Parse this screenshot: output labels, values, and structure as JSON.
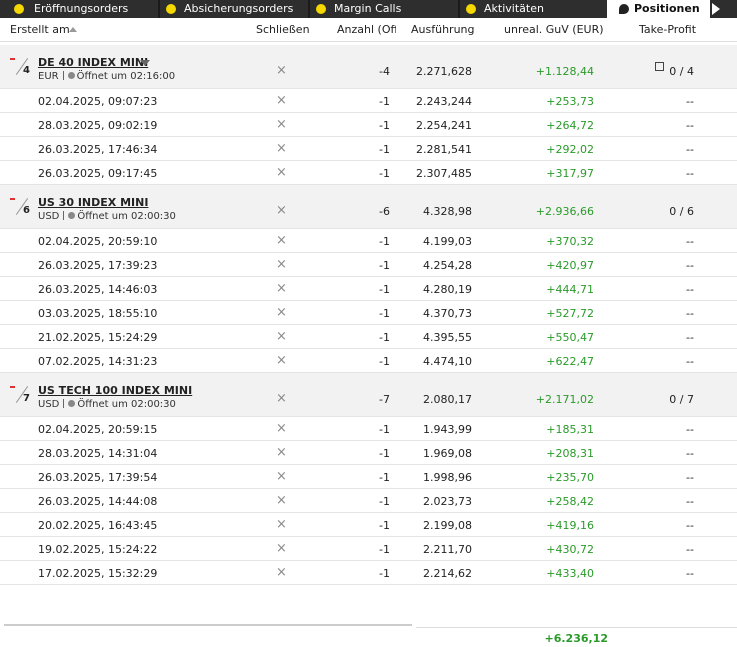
{
  "tabs": [
    "Eröffnungsorders",
    "Absicherungsorders",
    "Margin Calls",
    "Aktivitäten",
    "Positionen"
  ],
  "columns": [
    "Erstellt am",
    "Schließen",
    "Anzahl (Offe",
    "Ausführung",
    "unreal. GuV (EUR)",
    "Take-Profit"
  ],
  "groups": [
    {
      "count": "4",
      "name": "DE 40 INDEX MINI",
      "currency": "EUR",
      "opens": "Öffnet um 02:16:00",
      "quantity": "-4",
      "execution": "2.271,628",
      "pnl": "+1.128,44",
      "take_profit": "0 / 4",
      "rows": [
        {
          "date": "02.04.2025, 09:07:23",
          "quantity": "-1",
          "execution": "2.243,244",
          "pnl": "+253,73",
          "take_profit": "--"
        },
        {
          "date": "28.03.2025, 09:02:19",
          "quantity": "-1",
          "execution": "2.254,241",
          "pnl": "+264,72",
          "take_profit": "--"
        },
        {
          "date": "26.03.2025, 17:46:34",
          "quantity": "-1",
          "execution": "2.281,541",
          "pnl": "+292,02",
          "take_profit": "--"
        },
        {
          "date": "26.03.2025, 09:17:45",
          "quantity": "-1",
          "execution": "2.307,485",
          "pnl": "+317,97",
          "take_profit": "--"
        }
      ]
    },
    {
      "count": "6",
      "name": "US 30 INDEX MINI",
      "currency": "USD",
      "opens": "Öffnet um 02:00:30",
      "quantity": "-6",
      "execution": "4.328,98",
      "pnl": "+2.936,66",
      "take_profit": "0 / 6",
      "rows": [
        {
          "date": "02.04.2025, 20:59:10",
          "quantity": "-1",
          "execution": "4.199,03",
          "pnl": "+370,32",
          "take_profit": "--"
        },
        {
          "date": "26.03.2025, 17:39:23",
          "quantity": "-1",
          "execution": "4.254,28",
          "pnl": "+420,97",
          "take_profit": "--"
        },
        {
          "date": "26.03.2025, 14:46:03",
          "quantity": "-1",
          "execution": "4.280,19",
          "pnl": "+444,71",
          "take_profit": "--"
        },
        {
          "date": "03.03.2025, 18:55:10",
          "quantity": "-1",
          "execution": "4.370,73",
          "pnl": "+527,72",
          "take_profit": "--"
        },
        {
          "date": "21.02.2025, 15:24:29",
          "quantity": "-1",
          "execution": "4.395,55",
          "pnl": "+550,47",
          "take_profit": "--"
        },
        {
          "date": "07.02.2025, 14:31:23",
          "quantity": "-1",
          "execution": "4.474,10",
          "pnl": "+622,47",
          "take_profit": "--"
        }
      ]
    },
    {
      "count": "7",
      "name": "US TECH 100 INDEX MINI",
      "currency": "USD",
      "opens": "Öffnet um 02:00:30",
      "quantity": "-7",
      "execution": "2.080,17",
      "pnl": "+2.171,02",
      "take_profit": "0 / 7",
      "rows": [
        {
          "date": "02.04.2025, 20:59:15",
          "quantity": "-1",
          "execution": "1.943,99",
          "pnl": "+185,31",
          "take_profit": "--"
        },
        {
          "date": "28.03.2025, 14:31:04",
          "quantity": "-1",
          "execution": "1.969,08",
          "pnl": "+208,31",
          "take_profit": "--"
        },
        {
          "date": "26.03.2025, 17:39:54",
          "quantity": "-1",
          "execution": "1.998,96",
          "pnl": "+235,70",
          "take_profit": "--"
        },
        {
          "date": "26.03.2025, 14:44:08",
          "quantity": "-1",
          "execution": "2.023,73",
          "pnl": "+258,42",
          "take_profit": "--"
        },
        {
          "date": "20.02.2025, 16:43:45",
          "quantity": "-1",
          "execution": "2.199,08",
          "pnl": "+419,16",
          "take_profit": "--"
        },
        {
          "date": "19.02.2025, 15:24:22",
          "quantity": "-1",
          "execution": "2.211,70",
          "pnl": "+430,72",
          "take_profit": "--"
        },
        {
          "date": "17.02.2025, 15:32:29",
          "quantity": "-1",
          "execution": "2.214,62",
          "pnl": "+433,40",
          "take_profit": "--"
        }
      ]
    }
  ],
  "total_pnl": "+6.236,12"
}
